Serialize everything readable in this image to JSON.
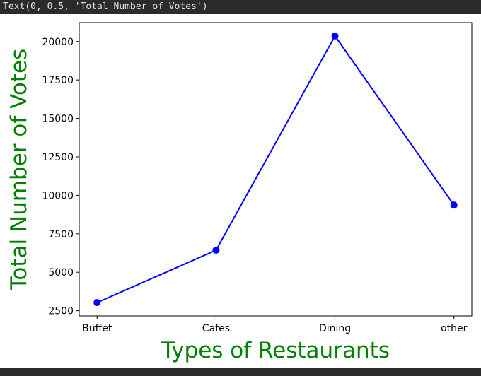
{
  "output": {
    "text": "Text(0, 0.5, 'Total Number of Votes')"
  },
  "chart_data": {
    "type": "line",
    "title": "",
    "xlabel": "Types of Restaurants",
    "ylabel": "Total Number of Votes",
    "categories": [
      "Buffet",
      "Cafes",
      "Dining",
      "other"
    ],
    "series": [
      {
        "values": [
          3028,
          6434,
          20363,
          9367
        ],
        "color": "#0000ff",
        "marker": "circle"
      }
    ],
    "yticks": [
      2500,
      5000,
      7500,
      10000,
      12500,
      15000,
      17500,
      20000
    ],
    "ylim": [
      2161,
      21230
    ],
    "grid": false,
    "label_color": "#008000"
  }
}
